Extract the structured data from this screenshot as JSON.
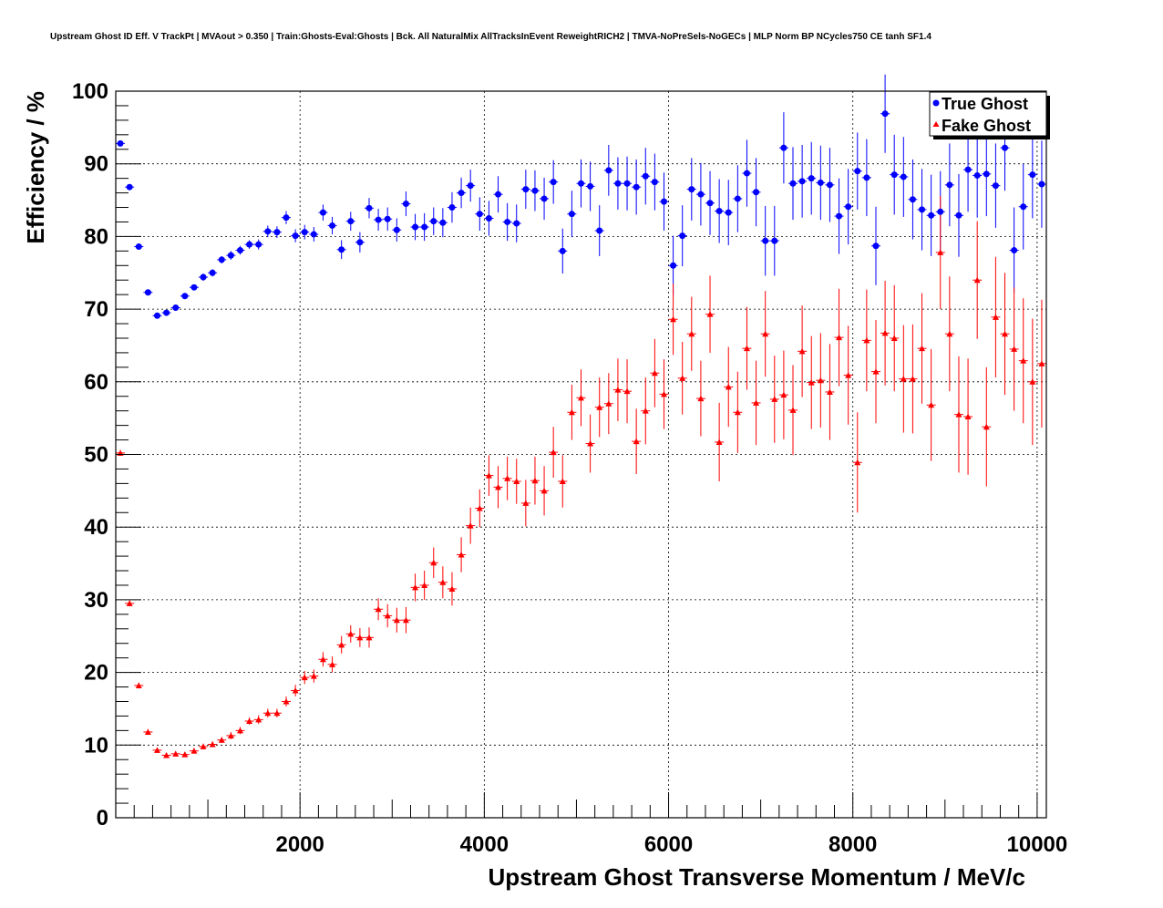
{
  "chart_data": {
    "type": "scatter",
    "title": "Upstream Ghost ID Eff. V TrackPt | MVAout > 0.350 | Train:Ghosts-Eval:Ghosts | Bck. All NaturalMix AllTracksInEvent ReweightRICH2 | TMVA-NoPreSels-NoGECs | MLP Norm BP NCycles750 CE tanh SF1.4",
    "xlabel": "Upstream Ghost Transverse Momentum / MeV/c",
    "ylabel": "Efficiency / %",
    "xlim": [
      0,
      10100
    ],
    "ylim": [
      0,
      100
    ],
    "xticks": [
      2000,
      4000,
      6000,
      8000,
      10000
    ],
    "yticks": [
      0,
      10,
      20,
      30,
      40,
      50,
      60,
      70,
      80,
      90,
      100
    ],
    "grid": true,
    "legend_position": "top-right",
    "series": [
      {
        "name": "True Ghost",
        "color": "#0000ff",
        "marker": "circle",
        "x": [
          50,
          150,
          250,
          350,
          450,
          550,
          650,
          750,
          850,
          950,
          1050,
          1150,
          1250,
          1350,
          1450,
          1550,
          1650,
          1750,
          1850,
          1950,
          2050,
          2150,
          2250,
          2350,
          2450,
          2550,
          2650,
          2750,
          2850,
          2950,
          3050,
          3150,
          3250,
          3350,
          3450,
          3550,
          3650,
          3750,
          3850,
          3950,
          4050,
          4150,
          4250,
          4350,
          4450,
          4550,
          4650,
          4750,
          4850,
          4950,
          5050,
          5150,
          5250,
          5350,
          5450,
          5550,
          5650,
          5750,
          5850,
          5950,
          6050,
          6150,
          6250,
          6350,
          6450,
          6550,
          6650,
          6750,
          6850,
          6950,
          7050,
          7150,
          7250,
          7350,
          7450,
          7550,
          7650,
          7750,
          7850,
          7950,
          8050,
          8150,
          8250,
          8350,
          8450,
          8550,
          8650,
          8750,
          8850,
          8950,
          9050,
          9150,
          9250,
          9350,
          9450,
          9550,
          9650,
          9750,
          9850,
          9950,
          10050
        ],
        "y": [
          92.8,
          86.8,
          78.6,
          72.3,
          69.1,
          69.5,
          70.2,
          71.8,
          73.0,
          74.4,
          75.0,
          76.8,
          77.4,
          78.1,
          78.9,
          78.9,
          80.7,
          80.6,
          82.6,
          80.1,
          80.6,
          80.3,
          83.3,
          81.5,
          78.2,
          82.1,
          79.2,
          83.9,
          82.3,
          82.4,
          80.9,
          84.5,
          81.3,
          81.3,
          82.1,
          81.9,
          84.0,
          86.0,
          87.0,
          83.1,
          82.5,
          85.8,
          82.0,
          81.8,
          86.5,
          86.3,
          85.2,
          87.5,
          78.0,
          83.1,
          87.3,
          86.9,
          80.8,
          89.1,
          87.3,
          87.3,
          86.8,
          88.3,
          87.5,
          84.8,
          76.0,
          80.1,
          86.5,
          85.8,
          84.6,
          83.5,
          83.3,
          85.2,
          88.7,
          86.1,
          79.4,
          79.4,
          92.2,
          87.3,
          87.6,
          88.0,
          87.4,
          87.1,
          82.8,
          84.1,
          89.0,
          88.1,
          78.7,
          96.9,
          88.5,
          88.2,
          85.1,
          83.7,
          82.9,
          83.4,
          87.1,
          82.9,
          89.2,
          88.4,
          88.6,
          87.0,
          92.2,
          78.1,
          84.1,
          88.5,
          87.2
        ],
        "yerr": [
          0.3,
          0.4,
          0.4,
          0.4,
          0.4,
          0.4,
          0.4,
          0.4,
          0.4,
          0.5,
          0.5,
          0.5,
          0.6,
          0.6,
          0.6,
          0.7,
          0.8,
          0.8,
          0.9,
          0.9,
          1.0,
          1.0,
          1.1,
          1.2,
          1.3,
          1.3,
          1.4,
          1.4,
          1.5,
          1.6,
          1.6,
          1.7,
          1.8,
          1.9,
          1.9,
          2.0,
          2.1,
          2.1,
          2.2,
          2.3,
          2.4,
          2.5,
          2.6,
          2.6,
          2.7,
          2.8,
          2.9,
          3.0,
          3.1,
          3.2,
          3.3,
          3.4,
          3.5,
          3.5,
          3.6,
          3.7,
          3.8,
          3.9,
          3.9,
          4.0,
          4.1,
          4.2,
          4.3,
          4.3,
          4.4,
          4.4,
          4.5,
          4.6,
          4.6,
          4.7,
          4.8,
          4.8,
          4.9,
          5.0,
          5.0,
          5.0,
          5.1,
          5.1,
          5.2,
          5.2,
          5.3,
          5.3,
          5.4,
          5.4,
          5.5,
          5.5,
          5.5,
          5.6,
          5.6,
          5.6,
          5.7,
          5.7,
          5.8,
          5.8,
          5.8,
          5.8,
          5.9,
          5.9,
          5.9,
          6.0,
          6.0
        ]
      },
      {
        "name": "Fake Ghost",
        "color": "#ff0000",
        "marker": "triangle",
        "x": [
          50,
          150,
          250,
          350,
          450,
          550,
          650,
          750,
          850,
          950,
          1050,
          1150,
          1250,
          1350,
          1450,
          1550,
          1650,
          1750,
          1850,
          1950,
          2050,
          2150,
          2250,
          2350,
          2450,
          2550,
          2650,
          2750,
          2850,
          2950,
          3050,
          3150,
          3250,
          3350,
          3450,
          3550,
          3650,
          3750,
          3850,
          3950,
          4050,
          4150,
          4250,
          4350,
          4450,
          4550,
          4650,
          4750,
          4850,
          4950,
          5050,
          5150,
          5250,
          5350,
          5450,
          5550,
          5650,
          5750,
          5850,
          5950,
          6050,
          6150,
          6250,
          6350,
          6450,
          6550,
          6650,
          6750,
          6850,
          6950,
          7050,
          7150,
          7250,
          7350,
          7450,
          7550,
          7650,
          7750,
          7850,
          7950,
          8050,
          8150,
          8250,
          8350,
          8450,
          8550,
          8650,
          8750,
          8850,
          8950,
          9050,
          9150,
          9250,
          9350,
          9450,
          9550,
          9650,
          9750,
          9850,
          9950,
          10050
        ],
        "y": [
          50.2,
          29.5,
          18.2,
          11.8,
          9.3,
          8.6,
          8.8,
          8.7,
          9.2,
          9.8,
          10.1,
          10.7,
          11.3,
          12.0,
          13.3,
          13.5,
          14.4,
          14.4,
          16.0,
          17.5,
          19.3,
          19.5,
          21.8,
          21.1,
          23.8,
          25.3,
          24.8,
          24.8,
          28.7,
          27.8,
          27.2,
          27.2,
          31.7,
          32.0,
          35.1,
          32.4,
          31.5,
          36.2,
          40.2,
          42.6,
          47.1,
          45.5,
          46.7,
          46.3,
          43.3,
          46.4,
          45.0,
          50.3,
          46.3,
          55.8,
          57.8,
          51.5,
          56.5,
          57.0,
          58.9,
          58.7,
          51.8,
          56.0,
          61.2,
          58.3,
          68.6,
          60.5,
          66.6,
          57.7,
          69.3,
          51.7,
          59.3,
          55.8,
          64.6,
          57.1,
          66.6,
          57.6,
          58.2,
          56.1,
          64.2,
          59.9,
          60.2,
          58.6,
          66.1,
          60.9,
          48.9,
          65.7,
          61.4,
          66.7,
          66.0,
          60.4,
          60.4,
          64.6,
          56.8,
          77.8,
          66.6,
          55.5,
          55.2,
          74.0,
          53.8,
          68.9,
          66.6,
          64.5,
          62.9,
          60.0,
          62.5
        ],
        "yerr": [
          0.4,
          0.4,
          0.4,
          0.4,
          0.3,
          0.3,
          0.3,
          0.3,
          0.4,
          0.4,
          0.4,
          0.4,
          0.5,
          0.5,
          0.5,
          0.6,
          0.6,
          0.6,
          0.7,
          0.8,
          0.9,
          0.9,
          1.0,
          1.1,
          1.2,
          1.2,
          1.3,
          1.4,
          1.5,
          1.6,
          1.7,
          1.8,
          1.9,
          2.0,
          2.1,
          2.2,
          2.3,
          2.4,
          2.5,
          2.6,
          2.8,
          2.9,
          3.0,
          3.1,
          3.2,
          3.3,
          3.4,
          3.5,
          3.6,
          3.8,
          3.9,
          4.0,
          4.1,
          4.2,
          4.3,
          4.4,
          4.5,
          4.6,
          4.7,
          4.8,
          4.9,
          5.0,
          5.1,
          5.2,
          5.3,
          5.4,
          5.5,
          5.6,
          5.7,
          5.8,
          5.9,
          6.0,
          6.1,
          6.2,
          6.3,
          6.4,
          6.5,
          6.6,
          6.7,
          6.8,
          6.9,
          7.0,
          7.1,
          7.2,
          7.3,
          7.4,
          7.5,
          7.6,
          7.7,
          7.8,
          7.9,
          8.0,
          8.0,
          8.1,
          8.2,
          8.3,
          8.4,
          8.5,
          8.6,
          8.7,
          8.8
        ]
      }
    ]
  }
}
